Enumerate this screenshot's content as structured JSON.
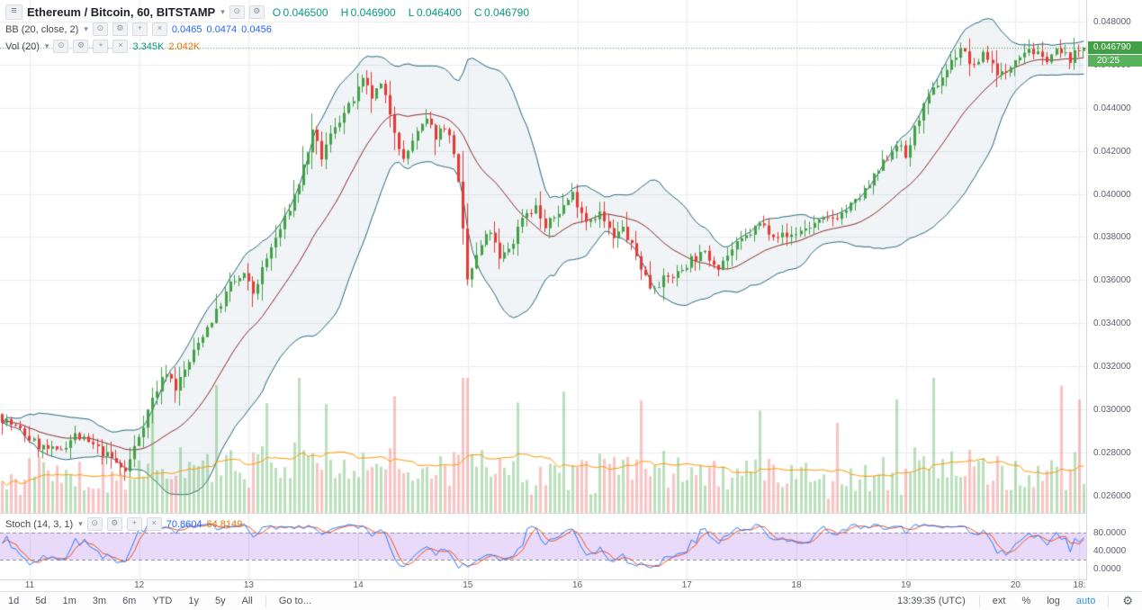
{
  "header": {
    "title": "Ethereum / Bitcoin, 60, BITSTAMP",
    "ohlc": {
      "o_label": "O",
      "o_value": "0.046500",
      "h_label": "H",
      "h_value": "0.046900",
      "l_label": "L",
      "l_value": "0.046400",
      "c_label": "C",
      "c_value": "0.046790"
    },
    "bb": {
      "label": "BB (20, close, 2)",
      "basis": "0.0465",
      "upper": "0.0474",
      "lower": "0.0456"
    },
    "vol": {
      "label": "Vol (20)",
      "ma_value": "3.345K",
      "last_value": "2.042K"
    }
  },
  "stoch_legend": {
    "label": "Stoch (14, 3, 1)",
    "k_value": "70.8604",
    "d_value": "64.8149"
  },
  "price_axis": {
    "ticks": [
      "0.048000",
      "0.046000",
      "0.044000",
      "0.042000",
      "0.040000",
      "0.038000",
      "0.036000",
      "0.034000",
      "0.032000",
      "0.030000",
      "0.028000",
      "0.026000"
    ],
    "last_price_label": "0.046790",
    "countdown": "20:25"
  },
  "stoch_axis": {
    "ticks": [
      "80.0000",
      "40.0000",
      "0.0000"
    ]
  },
  "toolbar": {
    "ranges": [
      "1d",
      "5d",
      "1m",
      "3m",
      "6m",
      "YTD",
      "1y",
      "5y",
      "All"
    ],
    "goto_label": "Go to...",
    "clock": "13:39:35 (UTC)",
    "ext_label": "ext",
    "percent_label": "%",
    "log_label": "log",
    "auto_label": "auto"
  },
  "colors": {
    "up": "#43a047",
    "down": "#e53935",
    "vol_up": "rgba(76,175,80,0.38)",
    "vol_down": "rgba(239,83,80,0.34)",
    "bb_line": "#26697a",
    "bb_fill": "rgba(38,105,122,0.07)",
    "bb_basis": "#8b2c2c",
    "vol_ma": "#ff9800",
    "stoch_k": "#2979ff",
    "stoch_d": "#f4511e",
    "stoch_band": "rgba(178,123,233,0.28)",
    "grid": "#e9ebee",
    "axis_text": "#5d616c",
    "last_price_bg": "#43a047",
    "countdown_bg": "#58b25c",
    "accent_blue": "#2962ff",
    "accent_teal": "#089981",
    "accent_orange": "#ef6c00"
  },
  "chart_data": {
    "type": "candlestick",
    "title": "Ethereum / Bitcoin, 60, BITSTAMP",
    "symbol": "Ethereum / Bitcoin",
    "exchange": "BITSTAMP",
    "interval_minutes": 60,
    "price_range": [
      0.0252,
      0.049
    ],
    "price_tick_step": 0.002,
    "ohlc_current": {
      "open": 0.0465,
      "high": 0.0469,
      "low": 0.0464,
      "close": 0.04679
    },
    "indicators": [
      {
        "name": "Bollinger Bands",
        "params": "20, close, 2",
        "basis": 0.0465,
        "upper": 0.0474,
        "lower": 0.0456
      },
      {
        "name": "Volume MA",
        "params": "20",
        "ma": "3.345K",
        "last": "2.042K"
      },
      {
        "name": "Stochastic",
        "params": "14, 3, 1",
        "k": 70.8604,
        "d": 64.8149,
        "band": [
          20,
          80
        ]
      }
    ],
    "num_candles": 238,
    "seed": 7,
    "close_anchors": [
      [
        0,
        0.0296
      ],
      [
        4,
        0.029
      ],
      [
        8,
        0.0283
      ],
      [
        12,
        0.028
      ],
      [
        16,
        0.0288
      ],
      [
        20,
        0.0283
      ],
      [
        24,
        0.0277
      ],
      [
        27,
        0.0271
      ],
      [
        30,
        0.0288
      ],
      [
        33,
        0.0305
      ],
      [
        36,
        0.0318
      ],
      [
        38,
        0.031
      ],
      [
        41,
        0.0322
      ],
      [
        44,
        0.0335
      ],
      [
        47,
        0.0345
      ],
      [
        50,
        0.0358
      ],
      [
        53,
        0.0362
      ],
      [
        55,
        0.0354
      ],
      [
        59,
        0.0375
      ],
      [
        62,
        0.0388
      ],
      [
        65,
        0.0405
      ],
      [
        68,
        0.0428
      ],
      [
        70,
        0.0417
      ],
      [
        73,
        0.0432
      ],
      [
        76,
        0.044
      ],
      [
        79,
        0.0452
      ],
      [
        81,
        0.0445
      ],
      [
        83,
        0.045
      ],
      [
        85,
        0.0438
      ],
      [
        88,
        0.0415
      ],
      [
        90,
        0.0425
      ],
      [
        93,
        0.0434
      ],
      [
        95,
        0.0427
      ],
      [
        97,
        0.0432
      ],
      [
        99,
        0.042
      ],
      [
        100,
        0.0404
      ],
      [
        102,
        0.036
      ],
      [
        105,
        0.0376
      ],
      [
        107,
        0.0383
      ],
      [
        109,
        0.0369
      ],
      [
        112,
        0.0378
      ],
      [
        114,
        0.039
      ],
      [
        117,
        0.0394
      ],
      [
        119,
        0.0384
      ],
      [
        122,
        0.0392
      ],
      [
        125,
        0.04
      ],
      [
        128,
        0.0388
      ],
      [
        131,
        0.0391
      ],
      [
        134,
        0.0379
      ],
      [
        136,
        0.0384
      ],
      [
        139,
        0.0371
      ],
      [
        142,
        0.0357
      ],
      [
        145,
        0.036
      ],
      [
        148,
        0.0363
      ],
      [
        151,
        0.037
      ],
      [
        154,
        0.0372
      ],
      [
        157,
        0.0367
      ],
      [
        160,
        0.0374
      ],
      [
        163,
        0.038
      ],
      [
        166,
        0.0386
      ],
      [
        169,
        0.0382
      ],
      [
        172,
        0.038
      ],
      [
        175,
        0.0383
      ],
      [
        178,
        0.0386
      ],
      [
        181,
        0.0388
      ],
      [
        184,
        0.0391
      ],
      [
        187,
        0.0396
      ],
      [
        190,
        0.0404
      ],
      [
        193,
        0.0414
      ],
      [
        196,
        0.0424
      ],
      [
        198,
        0.0417
      ],
      [
        201,
        0.0436
      ],
      [
        204,
        0.0448
      ],
      [
        207,
        0.0458
      ],
      [
        210,
        0.0468
      ],
      [
        213,
        0.0458
      ],
      [
        215,
        0.0466
      ],
      [
        218,
        0.0457
      ],
      [
        220,
        0.0455
      ],
      [
        222,
        0.0464
      ],
      [
        225,
        0.0468
      ],
      [
        228,
        0.0462
      ],
      [
        231,
        0.0466
      ],
      [
        234,
        0.0463
      ],
      [
        237,
        0.04679
      ]
    ],
    "volume_spikes": [
      [
        33,
        0.45
      ],
      [
        47,
        0.5
      ],
      [
        58,
        0.55
      ],
      [
        65,
        0.95
      ],
      [
        71,
        0.5
      ],
      [
        86,
        0.45
      ],
      [
        101,
        0.8
      ],
      [
        102,
        0.9
      ],
      [
        113,
        0.5
      ],
      [
        123,
        0.45
      ],
      [
        140,
        0.4
      ],
      [
        166,
        0.45
      ],
      [
        183,
        0.4
      ],
      [
        196,
        0.5
      ],
      [
        204,
        1.0
      ],
      [
        232,
        0.6
      ],
      [
        236,
        0.5
      ]
    ],
    "day_ticks": [
      [
        6,
        "11"
      ],
      [
        30,
        "12"
      ],
      [
        54,
        "13"
      ],
      [
        78,
        "14"
      ],
      [
        102,
        "15"
      ],
      [
        126,
        "16"
      ],
      [
        150,
        "17"
      ],
      [
        174,
        "18"
      ],
      [
        198,
        "19"
      ],
      [
        222,
        "20"
      ],
      [
        236,
        "18:"
      ]
    ]
  }
}
